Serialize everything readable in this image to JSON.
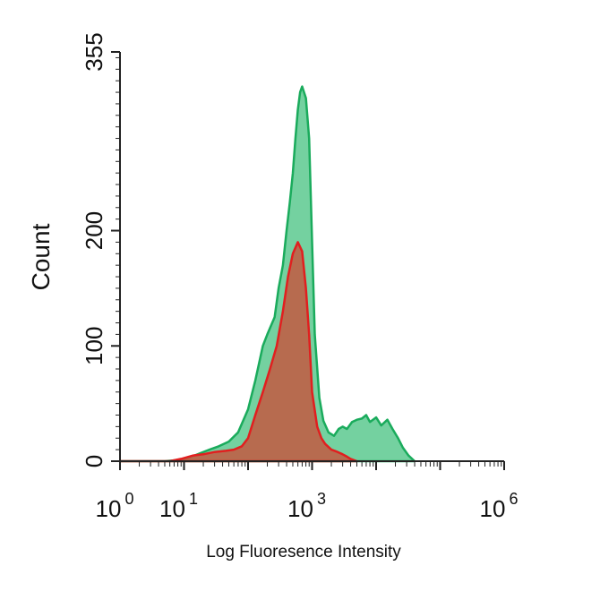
{
  "chart_data": {
    "type": "area",
    "title": "",
    "xlabel": "Log Fluoresence Intensity",
    "ylabel": "Count",
    "x_scale": "log10",
    "xlim": [
      1,
      1000000
    ],
    "ylim": [
      0,
      355
    ],
    "x_ticks": [
      {
        "base": "10",
        "exp": "0",
        "value": 1
      },
      {
        "base": "10",
        "exp": "1",
        "value": 10
      },
      {
        "base": "10",
        "exp": "3",
        "value": 1000
      },
      {
        "base": "10",
        "exp": "6",
        "value": 1000000
      }
    ],
    "y_ticks": [
      {
        "label": "0",
        "value": 0
      },
      {
        "label": "100",
        "value": 100
      },
      {
        "label": "200",
        "value": 200
      },
      {
        "label": "355",
        "value": 355
      }
    ],
    "grid": false,
    "legend": "none",
    "series": [
      {
        "color": "#1aab5c",
        "fill": "#5cc98f",
        "x": [
          1,
          5,
          8,
          12,
          18,
          25,
          35,
          50,
          70,
          100,
          130,
          170,
          200,
          260,
          300,
          350,
          400,
          450,
          500,
          550,
          600,
          650,
          700,
          800,
          900,
          1000,
          1100,
          1300,
          1500,
          1800,
          2200,
          2600,
          3000,
          3500,
          4200,
          5000,
          6000,
          7000,
          8000,
          10000,
          12000,
          15000,
          18000,
          22000,
          26000,
          32000,
          40000
        ],
        "y": [
          0,
          0,
          1,
          3,
          7,
          10,
          13,
          17,
          25,
          45,
          70,
          100,
          110,
          125,
          150,
          170,
          200,
          225,
          250,
          280,
          305,
          320,
          325,
          315,
          280,
          190,
          110,
          55,
          35,
          25,
          22,
          28,
          30,
          28,
          34,
          36,
          37,
          40,
          34,
          38,
          31,
          36,
          28,
          20,
          12,
          5,
          0
        ]
      },
      {
        "color": "#e11f1f",
        "fill": "#bf5f46",
        "x": [
          1,
          6,
          9,
          14,
          20,
          30,
          45,
          60,
          80,
          100,
          130,
          170,
          220,
          280,
          350,
          420,
          500,
          600,
          700,
          800,
          900,
          1000,
          1200,
          1400,
          1600,
          2000,
          2500,
          3000,
          3500,
          4000,
          5000
        ],
        "y": [
          0,
          0,
          2,
          5,
          6,
          8,
          9,
          10,
          13,
          20,
          40,
          60,
          80,
          100,
          130,
          160,
          180,
          190,
          182,
          150,
          110,
          60,
          30,
          20,
          15,
          10,
          8,
          6,
          4,
          2,
          0
        ]
      }
    ]
  }
}
